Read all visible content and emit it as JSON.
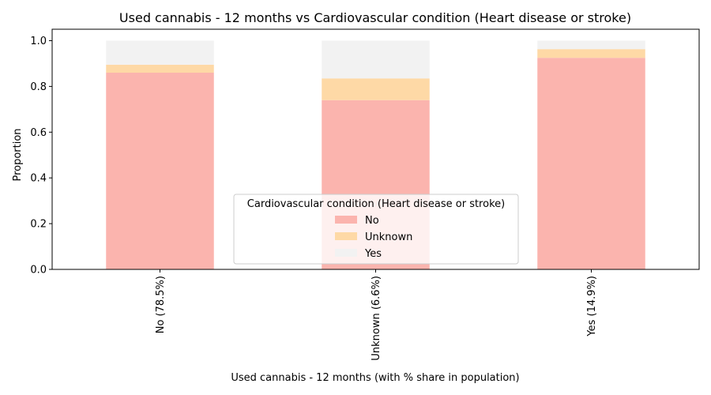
{
  "chart_data": {
    "type": "bar",
    "stacked": true,
    "title": "Used cannabis - 12 months vs Cardiovascular condition (Heart disease or stroke)",
    "xlabel": "Used cannabis - 12 months (with % share in population)",
    "ylabel": "Proportion",
    "categories": [
      "No (78.5%)",
      "Unknown (6.6%)",
      "Yes (14.9%)"
    ],
    "ylim": [
      0,
      1.05
    ],
    "yticks": [
      "0.0",
      "0.2",
      "0.4",
      "0.6",
      "0.8",
      "1.0"
    ],
    "grid": false,
    "legend": {
      "title": "Cardiovascular condition (Heart disease or stroke)",
      "placement": "lower-center"
    },
    "series": [
      {
        "name": "No",
        "color": "#fbb4ae",
        "values": [
          0.86,
          0.74,
          0.925
        ]
      },
      {
        "name": "Unknown",
        "color": "#fed9a6",
        "values": [
          0.035,
          0.095,
          0.038
        ]
      },
      {
        "name": "Yes",
        "color": "#f2f2f2",
        "values": [
          0.105,
          0.165,
          0.037
        ]
      }
    ]
  }
}
